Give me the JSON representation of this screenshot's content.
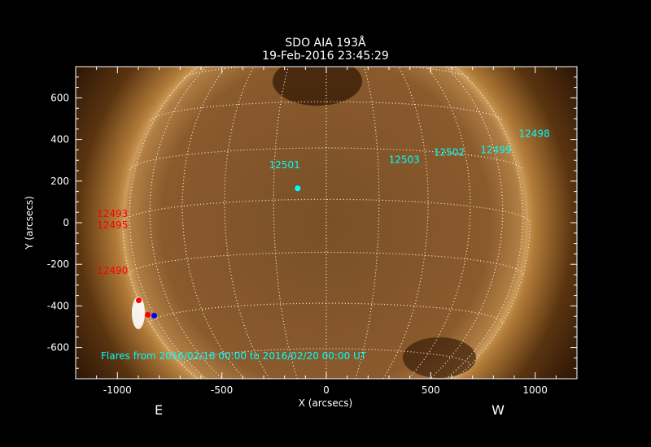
{
  "chart_data": {
    "type": "image",
    "title": "SDO AIA 193Å",
    "subtitle": "19-Feb-2016 23:45:29",
    "xlabel": "X (arcsecs)",
    "ylabel": "Y (arcsecs)",
    "xlim": [
      -1200,
      1200
    ],
    "ylim": [
      -750,
      750
    ],
    "xticks": [
      -1000,
      -500,
      0,
      500,
      1000
    ],
    "yticks": [
      -600,
      -400,
      -200,
      0,
      200,
      400,
      600
    ],
    "grid": "heliographic dotted, 15 deg",
    "solar_radius_arcsec": 975,
    "side_labels": {
      "east": "E",
      "west": "W"
    },
    "legend_text": "Flares from 2016/02/18 00:00 to 2016/02/20 00:00 UT",
    "active_regions": [
      {
        "label": "12501",
        "x": -200,
        "y": 282,
        "color": "#00ffff"
      },
      {
        "label": "12503",
        "x": 373,
        "y": 306,
        "color": "#00ffff"
      },
      {
        "label": "12502",
        "x": 588,
        "y": 341,
        "color": "#00ffff"
      },
      {
        "label": "12499",
        "x": 812,
        "y": 353,
        "color": "#00ffff"
      },
      {
        "label": "12498",
        "x": 996,
        "y": 431,
        "color": "#00ffff"
      },
      {
        "label": "12493",
        "x": -1024,
        "y": 47,
        "color": "#ff0000"
      },
      {
        "label": "12495",
        "x": -1024,
        "y": -8,
        "color": "#ff0000"
      },
      {
        "label": "12490",
        "x": -1024,
        "y": -227,
        "color": "#ff0000"
      }
    ],
    "flares": [
      {
        "x": -137,
        "y": 165,
        "color": "#00ffff"
      },
      {
        "x": -898,
        "y": -373,
        "color": "#ff0000"
      },
      {
        "x": -855,
        "y": -443,
        "color": "#ff0000"
      },
      {
        "x": -824,
        "y": -447,
        "color": "#0000ff"
      }
    ]
  }
}
